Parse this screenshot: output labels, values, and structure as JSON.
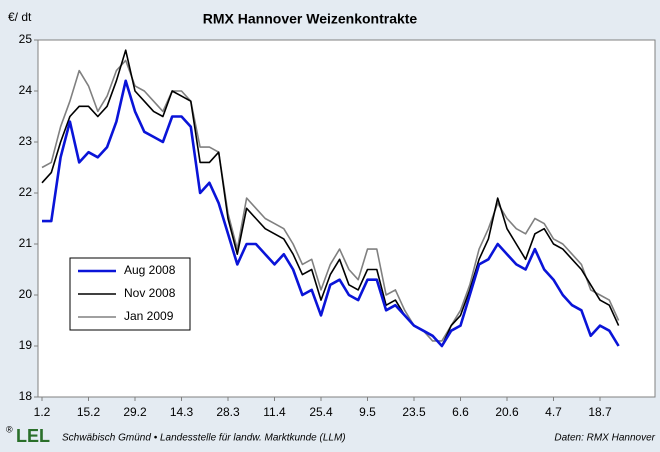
{
  "chart_data": {
    "type": "line",
    "title": "RMX Hannover Weizenkontrakte",
    "y_label": "€/ dt",
    "logo": "LEL",
    "logo_mark": "®",
    "credit": "Schwäbisch Gmünd • Landesstelle für landw. Marktkunde (LLM)",
    "source": "Daten: RMX Hannover",
    "categories": [
      "1.2",
      null,
      null,
      null,
      null,
      "15.2",
      null,
      null,
      null,
      null,
      "29.2",
      null,
      null,
      null,
      null,
      "14.3",
      null,
      null,
      null,
      null,
      "28.3",
      null,
      null,
      null,
      null,
      "11.4",
      null,
      null,
      null,
      null,
      "25.4",
      null,
      null,
      null,
      null,
      "9.5",
      null,
      null,
      null,
      null,
      "23.5",
      null,
      null,
      null,
      null,
      "6.6",
      null,
      null,
      null,
      null,
      "20.6",
      null,
      null,
      null,
      null,
      "4.7",
      null,
      null,
      null,
      null,
      "18.7",
      null,
      null
    ],
    "series": [
      {
        "name": "Aug 2008",
        "color": "#0a14d8",
        "width": 2.6,
        "values": [
          21.45,
          21.45,
          22.7,
          23.4,
          22.6,
          22.8,
          22.7,
          22.9,
          23.4,
          24.2,
          23.6,
          23.2,
          23.1,
          23.0,
          23.5,
          23.5,
          23.3,
          22.0,
          22.2,
          21.8,
          21.2,
          20.6,
          21.0,
          21.0,
          20.8,
          20.6,
          20.8,
          20.5,
          20.0,
          20.1,
          19.6,
          20.2,
          20.3,
          20.0,
          19.9,
          20.3,
          20.3,
          19.7,
          19.8,
          19.6,
          19.4,
          19.3,
          19.2,
          19.0,
          19.3,
          19.4,
          20.0,
          20.6,
          20.7,
          21.0,
          20.8,
          20.6,
          20.5,
          20.9,
          20.5,
          20.3,
          20.0,
          19.8,
          19.7,
          19.2,
          19.4,
          19.3,
          19.0
        ]
      },
      {
        "name": "Nov 2008",
        "color": "#000000",
        "width": 1.6,
        "values": [
          22.2,
          22.4,
          23.0,
          23.5,
          23.7,
          23.7,
          23.5,
          23.7,
          24.2,
          24.8,
          24.0,
          23.8,
          23.6,
          23.5,
          24.0,
          23.9,
          23.8,
          22.6,
          22.6,
          22.8,
          21.5,
          20.8,
          21.7,
          21.5,
          21.3,
          21.2,
          21.1,
          20.8,
          20.4,
          20.5,
          19.9,
          20.4,
          20.7,
          20.2,
          20.1,
          20.5,
          20.5,
          19.8,
          19.9,
          19.6,
          19.4,
          19.3,
          19.2,
          19.0,
          19.4,
          19.6,
          20.1,
          20.7,
          21.1,
          21.9,
          21.3,
          21.0,
          20.7,
          21.2,
          21.3,
          21.0,
          20.9,
          20.7,
          20.5,
          20.2,
          19.9,
          19.8,
          19.4
        ]
      },
      {
        "name": "Jan 2009",
        "color": "#808080",
        "width": 1.6,
        "values": [
          22.5,
          22.6,
          23.3,
          23.8,
          24.4,
          24.1,
          23.6,
          23.9,
          24.4,
          24.6,
          24.1,
          24.0,
          23.8,
          23.6,
          24.0,
          24.0,
          23.8,
          22.9,
          22.9,
          22.8,
          21.6,
          20.9,
          21.9,
          21.7,
          21.5,
          21.4,
          21.3,
          21.0,
          20.6,
          20.7,
          20.1,
          20.6,
          20.9,
          20.5,
          20.3,
          20.9,
          20.9,
          20.0,
          20.1,
          19.7,
          19.4,
          19.3,
          19.1,
          19.1,
          19.4,
          19.7,
          20.2,
          20.9,
          21.3,
          21.8,
          21.5,
          21.3,
          21.2,
          21.5,
          21.4,
          21.1,
          21.0,
          20.8,
          20.6,
          20.1,
          20.0,
          19.9,
          19.5
        ]
      }
    ],
    "ylim": [
      18,
      25
    ],
    "yticks": [
      18,
      19,
      20,
      21,
      22,
      23,
      24,
      25
    ],
    "legend": "lower left"
  }
}
